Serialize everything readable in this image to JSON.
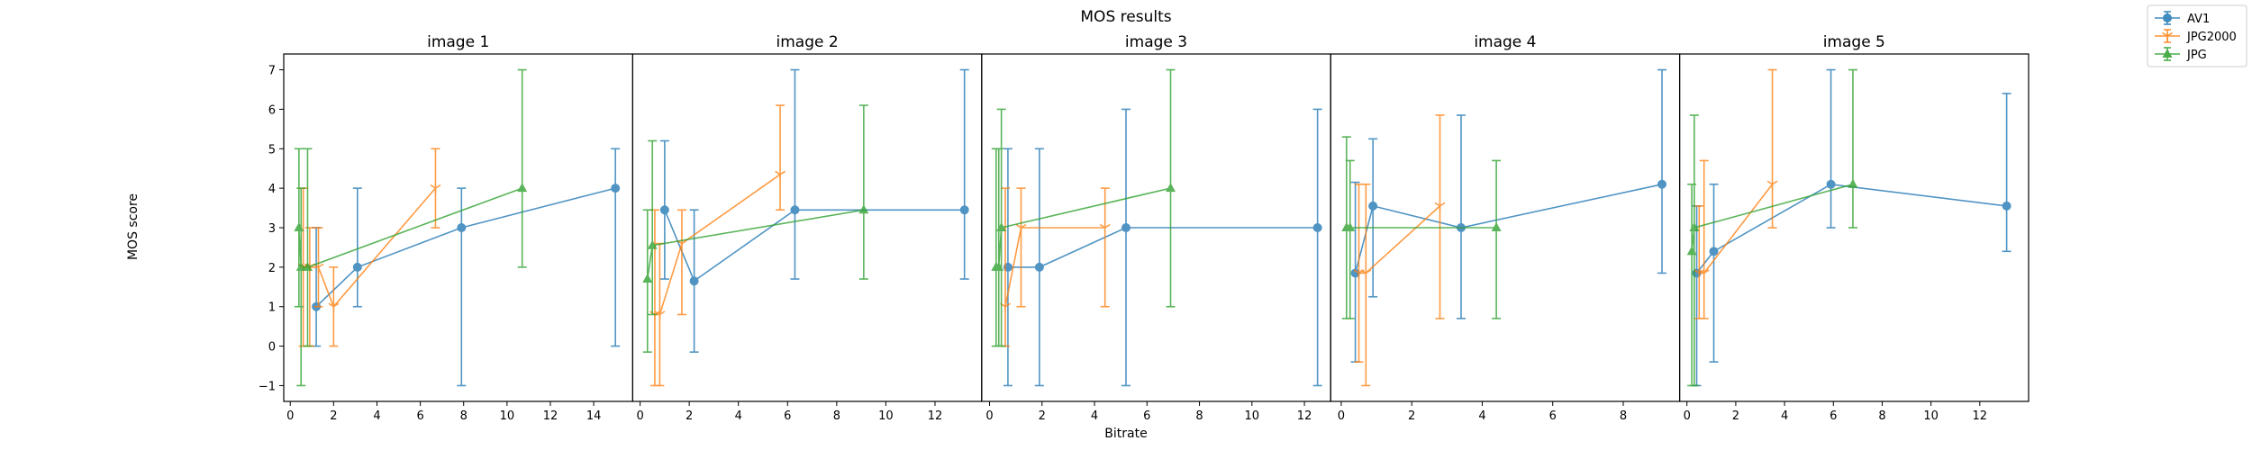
{
  "chart_data": {
    "type": "line",
    "title": "MOS results",
    "xlabel": "Bitrate",
    "ylabel": "MOS score",
    "ylim": [
      -1.4,
      7.4
    ],
    "yticks": [
      -1,
      0,
      1,
      2,
      3,
      4,
      5,
      6,
      7
    ],
    "grid": false,
    "legend_position": "top-right",
    "series_styles": [
      {
        "name": "AV1",
        "color": "#1f77b4",
        "marker": "circle"
      },
      {
        "name": "JPG2000",
        "color": "#ff7f0e",
        "marker": "tri-down"
      },
      {
        "name": "JPG",
        "color": "#2ca02c",
        "marker": "triangle-up"
      }
    ],
    "panels": [
      {
        "title": "image 1",
        "xlim": [
          -0.3,
          15.8
        ],
        "xticks": [
          0,
          2,
          4,
          6,
          8,
          10,
          12,
          14
        ],
        "series": [
          {
            "name": "AV1",
            "points": [
              {
                "x": 1.2,
                "y": 1.0,
                "lo": 0.0,
                "hi": 3.0
              },
              {
                "x": 3.1,
                "y": 2.0,
                "lo": 1.0,
                "hi": 4.0
              },
              {
                "x": 7.9,
                "y": 3.0,
                "lo": -1.0,
                "hi": 4.0
              },
              {
                "x": 15.0,
                "y": 4.0,
                "lo": 0.0,
                "hi": 5.0
              }
            ]
          },
          {
            "name": "JPG2000",
            "points": [
              {
                "x": 0.6,
                "y": 2.0,
                "lo": 0.0,
                "hi": 4.0
              },
              {
                "x": 0.9,
                "y": 2.0,
                "lo": 0.0,
                "hi": 3.0
              },
              {
                "x": 1.3,
                "y": 2.0,
                "lo": 1.0,
                "hi": 3.0
              },
              {
                "x": 2.0,
                "y": 1.0,
                "lo": 0.0,
                "hi": 2.0
              },
              {
                "x": 6.7,
                "y": 4.0,
                "lo": 3.0,
                "hi": 5.0
              }
            ]
          },
          {
            "name": "JPG",
            "points": [
              {
                "x": 0.4,
                "y": 3.0,
                "lo": 1.0,
                "hi": 5.0
              },
              {
                "x": 0.5,
                "y": 2.0,
                "lo": -1.0,
                "hi": 4.0
              },
              {
                "x": 0.8,
                "y": 2.0,
                "lo": 0.0,
                "hi": 5.0
              },
              {
                "x": 10.7,
                "y": 4.0,
                "lo": 2.0,
                "hi": 7.0
              }
            ]
          }
        ]
      },
      {
        "title": "image 2",
        "xlim": [
          -0.3,
          13.9
        ],
        "xticks": [
          0,
          2,
          4,
          6,
          8,
          10,
          12
        ],
        "series": [
          {
            "name": "AV1",
            "points": [
              {
                "x": 1.0,
                "y": 3.45,
                "lo": 1.7,
                "hi": 5.2
              },
              {
                "x": 2.2,
                "y": 1.65,
                "lo": -0.15,
                "hi": 3.45
              },
              {
                "x": 6.3,
                "y": 3.45,
                "lo": 1.7,
                "hi": 7.0
              },
              {
                "x": 13.2,
                "y": 3.45,
                "lo": 1.7,
                "hi": 7.0
              }
            ]
          },
          {
            "name": "JPG2000",
            "points": [
              {
                "x": 0.6,
                "y": 0.8,
                "lo": -1.0,
                "hi": 3.45
              },
              {
                "x": 0.8,
                "y": 0.8,
                "lo": -1.0,
                "hi": 2.6
              },
              {
                "x": 1.7,
                "y": 2.6,
                "lo": 0.8,
                "hi": 3.45
              },
              {
                "x": 5.7,
                "y": 4.35,
                "lo": 3.45,
                "hi": 6.1
              }
            ]
          },
          {
            "name": "JPG",
            "points": [
              {
                "x": 0.3,
                "y": 1.7,
                "lo": -0.15,
                "hi": 3.45
              },
              {
                "x": 0.5,
                "y": 2.55,
                "lo": 0.8,
                "hi": 5.2
              },
              {
                "x": 9.1,
                "y": 3.45,
                "lo": 1.7,
                "hi": 6.1
              }
            ]
          }
        ]
      },
      {
        "title": "image 3",
        "xlim": [
          -0.3,
          13.0
        ],
        "xticks": [
          0,
          2,
          4,
          6,
          8,
          10,
          12
        ],
        "series": [
          {
            "name": "AV1",
            "points": [
              {
                "x": 0.7,
                "y": 2.0,
                "lo": -1.0,
                "hi": 5.0
              },
              {
                "x": 1.9,
                "y": 2.0,
                "lo": -1.0,
                "hi": 5.0
              },
              {
                "x": 5.2,
                "y": 3.0,
                "lo": -1.0,
                "hi": 6.0
              },
              {
                "x": 12.5,
                "y": 3.0,
                "lo": -1.0,
                "hi": 6.0
              }
            ]
          },
          {
            "name": "JPG2000",
            "points": [
              {
                "x": 0.6,
                "y": 1.0,
                "lo": 0.0,
                "hi": 4.0
              },
              {
                "x": 1.2,
                "y": 3.0,
                "lo": 1.0,
                "hi": 4.0
              },
              {
                "x": 4.4,
                "y": 3.0,
                "lo": 1.0,
                "hi": 4.0
              }
            ]
          },
          {
            "name": "JPG",
            "points": [
              {
                "x": 0.25,
                "y": 2.0,
                "lo": 0.0,
                "hi": 5.0
              },
              {
                "x": 0.35,
                "y": 2.0,
                "lo": 0.0,
                "hi": 5.0
              },
              {
                "x": 0.45,
                "y": 3.0,
                "lo": 0.0,
                "hi": 6.0
              },
              {
                "x": 6.9,
                "y": 4.0,
                "lo": 1.0,
                "hi": 7.0
              }
            ]
          }
        ]
      },
      {
        "title": "image 4",
        "xlim": [
          -0.3,
          9.6
        ],
        "xticks": [
          0,
          2,
          4,
          6,
          8
        ],
        "series": [
          {
            "name": "AV1",
            "points": [
              {
                "x": 0.4,
                "y": 1.85,
                "lo": -0.4,
                "hi": 4.15
              },
              {
                "x": 0.9,
                "y": 3.55,
                "lo": 1.25,
                "hi": 5.25
              },
              {
                "x": 3.4,
                "y": 3.0,
                "lo": 0.7,
                "hi": 5.85
              },
              {
                "x": 9.1,
                "y": 4.1,
                "lo": 1.85,
                "hi": 7.0
              }
            ]
          },
          {
            "name": "JPG2000",
            "points": [
              {
                "x": 0.5,
                "y": 1.85,
                "lo": -0.4,
                "hi": 4.1
              },
              {
                "x": 0.7,
                "y": 1.85,
                "lo": -1.0,
                "hi": 4.1
              },
              {
                "x": 2.8,
                "y": 3.55,
                "lo": 0.7,
                "hi": 5.85
              }
            ]
          },
          {
            "name": "JPG",
            "points": [
              {
                "x": 0.15,
                "y": 3.0,
                "lo": 0.7,
                "hi": 5.3
              },
              {
                "x": 0.25,
                "y": 3.0,
                "lo": 0.7,
                "hi": 4.7
              },
              {
                "x": 4.4,
                "y": 3.0,
                "lo": 0.7,
                "hi": 4.7
              }
            ]
          }
        ]
      },
      {
        "title": "image 5",
        "xlim": [
          -0.3,
          14.0
        ],
        "xticks": [
          0,
          2,
          4,
          6,
          8,
          10,
          12
        ],
        "series": [
          {
            "name": "AV1",
            "points": [
              {
                "x": 0.4,
                "y": 1.85,
                "lo": -1.0,
                "hi": 3.55
              },
              {
                "x": 1.1,
                "y": 2.4,
                "lo": -0.4,
                "hi": 4.1
              },
              {
                "x": 5.9,
                "y": 4.1,
                "lo": 3.0,
                "hi": 7.0
              },
              {
                "x": 13.1,
                "y": 3.55,
                "lo": 2.4,
                "hi": 6.4
              }
            ]
          },
          {
            "name": "JPG2000",
            "points": [
              {
                "x": 0.5,
                "y": 1.85,
                "lo": 0.7,
                "hi": 3.55
              },
              {
                "x": 0.7,
                "y": 1.85,
                "lo": 0.7,
                "hi": 4.7
              },
              {
                "x": 3.5,
                "y": 4.1,
                "lo": 3.0,
                "hi": 7.0
              }
            ]
          },
          {
            "name": "JPG",
            "points": [
              {
                "x": 0.2,
                "y": 2.4,
                "lo": -1.0,
                "hi": 4.1
              },
              {
                "x": 0.3,
                "y": 3.0,
                "lo": -1.0,
                "hi": 5.85
              },
              {
                "x": 6.8,
                "y": 4.1,
                "lo": 3.0,
                "hi": 7.0
              }
            ]
          }
        ]
      }
    ]
  }
}
